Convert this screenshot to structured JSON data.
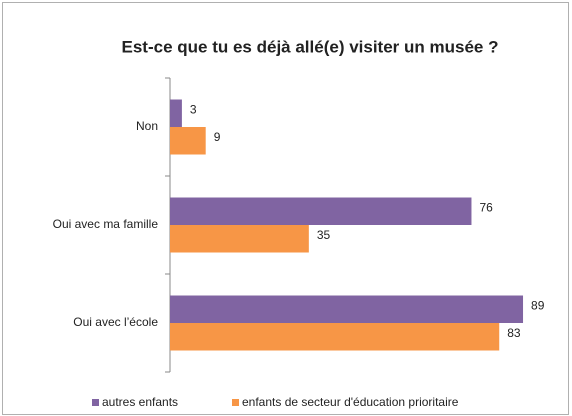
{
  "chart_data": {
    "type": "hbar",
    "title": "Est-ce que tu es déjà allé(e) visiter un musée ?",
    "categories": [
      "Non",
      "Oui avec ma famille",
      "Oui avec l’école"
    ],
    "series": [
      {
        "name": "autres enfants",
        "color": "#8064a2",
        "values": [
          3,
          76,
          89
        ]
      },
      {
        "name": "enfants de secteur d'éducation prioritaire",
        "color": "#f79646",
        "values": [
          9,
          35,
          83
        ]
      }
    ],
    "xlim": [
      0,
      90
    ],
    "legend": "bottom"
  }
}
